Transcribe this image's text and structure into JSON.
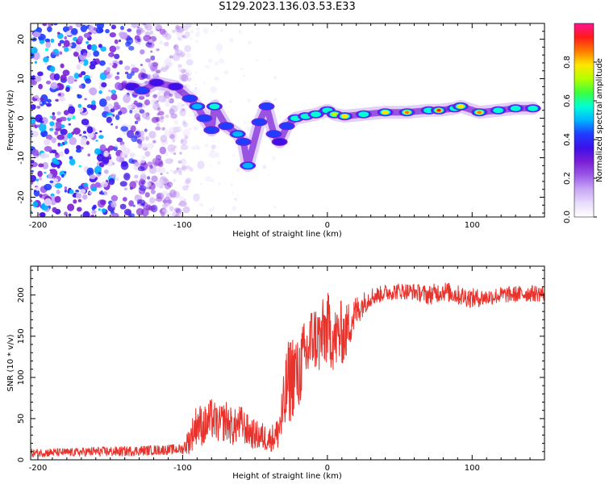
{
  "title": "S129.2023.136.03.53.E33",
  "colors": {
    "snr_line": "#e8322c",
    "noise_dots": "#b48cf0",
    "frame": "#000000",
    "colormap": [
      "#ffffff",
      "#e9dcfb",
      "#c8a8f5",
      "#9c5ae8",
      "#7a1fd6",
      "#3d10e8",
      "#1f3cff",
      "#00b5ff",
      "#00ffd5",
      "#3cff3c",
      "#b4ff00",
      "#ffe600",
      "#ff7a00",
      "#ff1a1a",
      "#ff1493"
    ]
  },
  "chart_data": [
    {
      "type": "heatmap",
      "title": "",
      "xlabel": "Height of straight line (km)",
      "ylabel": "Frequency (Hz)",
      "xlim": [
        -205,
        150
      ],
      "ylim": [
        -25,
        24
      ],
      "x_ticks": [
        -200,
        -100,
        0,
        100
      ],
      "y_ticks": [
        -20,
        -10,
        0,
        10,
        20
      ],
      "colorbar": {
        "label": "Normalized spectral amplitude",
        "range": [
          0,
          1
        ],
        "ticks": [
          0.0,
          0.2,
          0.4,
          0.6,
          0.8
        ]
      },
      "ridge": [
        {
          "x": -135,
          "y": 8,
          "amp": 0.35
        },
        {
          "x": -128,
          "y": 7,
          "amp": 0.45
        },
        {
          "x": -118,
          "y": 9,
          "amp": 0.35
        },
        {
          "x": -105,
          "y": 8,
          "amp": 0.35
        },
        {
          "x": -95,
          "y": 5,
          "amp": 0.45
        },
        {
          "x": -90,
          "y": 3,
          "amp": 0.5
        },
        {
          "x": -85,
          "y": 0,
          "amp": 0.45
        },
        {
          "x": -80,
          "y": -3,
          "amp": 0.45
        },
        {
          "x": -78,
          "y": 3,
          "amp": 0.55
        },
        {
          "x": -70,
          "y": -2,
          "amp": 0.4
        },
        {
          "x": -62,
          "y": -4,
          "amp": 0.5
        },
        {
          "x": -58,
          "y": -6,
          "amp": 0.4
        },
        {
          "x": -55,
          "y": -12,
          "amp": 0.5
        },
        {
          "x": -47,
          "y": -1,
          "amp": 0.45
        },
        {
          "x": -42,
          "y": 3,
          "amp": 0.4
        },
        {
          "x": -37,
          "y": -4,
          "amp": 0.4
        },
        {
          "x": -33,
          "y": -6,
          "amp": 0.35
        },
        {
          "x": -28,
          "y": -2,
          "amp": 0.45
        },
        {
          "x": -22,
          "y": 0,
          "amp": 0.55
        },
        {
          "x": -15,
          "y": 0.5,
          "amp": 0.6
        },
        {
          "x": -8,
          "y": 1,
          "amp": 0.6
        },
        {
          "x": 0,
          "y": 2,
          "amp": 0.55
        },
        {
          "x": 5,
          "y": 1,
          "amp": 0.7
        },
        {
          "x": 12,
          "y": 0.5,
          "amp": 0.8
        },
        {
          "x": 25,
          "y": 1,
          "amp": 0.6
        },
        {
          "x": 40,
          "y": 1.5,
          "amp": 0.8
        },
        {
          "x": 55,
          "y": 1.5,
          "amp": 0.85
        },
        {
          "x": 70,
          "y": 2,
          "amp": 0.6
        },
        {
          "x": 77,
          "y": 2,
          "amp": 0.92
        },
        {
          "x": 88,
          "y": 2.5,
          "amp": 0.6
        },
        {
          "x": 92,
          "y": 3,
          "amp": 0.8
        },
        {
          "x": 105,
          "y": 1.5,
          "amp": 0.85
        },
        {
          "x": 118,
          "y": 2,
          "amp": 0.55
        },
        {
          "x": 130,
          "y": 2.5,
          "amp": 0.6
        },
        {
          "x": 142,
          "y": 2.5,
          "amp": 0.55
        }
      ]
    },
    {
      "type": "line",
      "title": "",
      "xlabel": "Height of straight line (km)",
      "ylabel": "SNR (10 * v/v)",
      "xlim": [
        -205,
        150
      ],
      "ylim": [
        0,
        235
      ],
      "x_ticks": [
        -200,
        -100,
        0,
        100
      ],
      "y_ticks": [
        0,
        50,
        100,
        150,
        200
      ],
      "series": [
        {
          "x": [
            -205,
            -190,
            -175,
            -160,
            -145,
            -130,
            -115,
            -100,
            -95,
            -90,
            -85,
            -80,
            -75,
            -70,
            -65,
            -60,
            -55,
            -50,
            -45,
            -40,
            -35,
            -30,
            -28,
            -25,
            -22,
            -20,
            -18,
            -15,
            -12,
            -10,
            -5,
            0,
            5,
            10,
            12,
            15,
            20,
            25,
            30,
            35,
            40,
            50,
            60,
            70,
            80,
            90,
            100,
            110,
            120,
            130,
            140,
            150
          ],
          "values": [
            8,
            9,
            9,
            10,
            10,
            11,
            12,
            13,
            25,
            45,
            40,
            50,
            42,
            48,
            38,
            45,
            35,
            30,
            28,
            25,
            30,
            60,
            90,
            100,
            110,
            95,
            120,
            125,
            140,
            150,
            145,
            160,
            145,
            155,
            150,
            165,
            180,
            190,
            198,
            200,
            203,
            205,
            204,
            200,
            205,
            200,
            196,
            197,
            200,
            201,
            202,
            202
          ],
          "noise": [
            5,
            5,
            5,
            6,
            6,
            6,
            6,
            6,
            18,
            25,
            25,
            25,
            22,
            25,
            22,
            22,
            20,
            18,
            18,
            15,
            20,
            45,
            50,
            55,
            50,
            45,
            45,
            45,
            45,
            40,
            45,
            45,
            40,
            40,
            35,
            30,
            20,
            14,
            12,
            10,
            10,
            10,
            10,
            12,
            12,
            12,
            12,
            10,
            10,
            10,
            10,
            10
          ]
        }
      ]
    }
  ]
}
